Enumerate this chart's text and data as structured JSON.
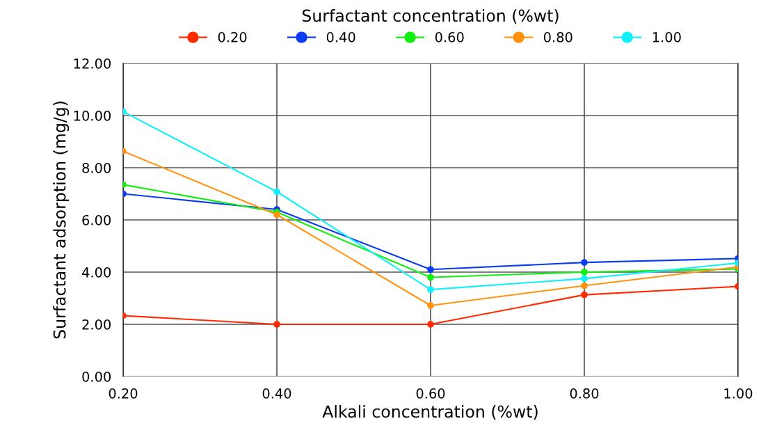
{
  "chart_data": {
    "type": "line",
    "xlabel": "Alkali concentration (%wt)",
    "ylabel": "Surfactant adsorption (mg/g)",
    "legend_title": "Surfactant concentration (%wt)",
    "x": [
      0.2,
      0.4,
      0.6,
      0.8,
      1.0
    ],
    "series": [
      {
        "name": "0.20",
        "color": "#ff2a00",
        "values": [
          2.33,
          2.0,
          2.0,
          3.13,
          3.45
        ]
      },
      {
        "name": "0.40",
        "color": "#0a3cf0",
        "values": [
          7.0,
          6.4,
          4.1,
          4.37,
          4.52
        ]
      },
      {
        "name": "0.60",
        "color": "#11ee11",
        "values": [
          7.35,
          6.3,
          3.8,
          4.0,
          4.12
        ]
      },
      {
        "name": "0.80",
        "color": "#ff9310",
        "values": [
          8.63,
          6.2,
          2.72,
          3.48,
          4.2
        ]
      },
      {
        "name": "1.00",
        "color": "#11f0f8",
        "values": [
          10.15,
          7.08,
          3.33,
          3.75,
          4.35
        ]
      }
    ],
    "xlim": [
      0.2,
      1.0
    ],
    "ylim": [
      0,
      12
    ],
    "xticks": [
      {
        "value": 0.2,
        "label": "0.20"
      },
      {
        "value": 0.4,
        "label": "0.40"
      },
      {
        "value": 0.6,
        "label": "0.60"
      },
      {
        "value": 0.8,
        "label": "0.80"
      },
      {
        "value": 1.0,
        "label": "1.00"
      }
    ],
    "yticks": [
      {
        "value": 0,
        "label": "0.00"
      },
      {
        "value": 2,
        "label": "2.00"
      },
      {
        "value": 4,
        "label": "4.00"
      },
      {
        "value": 6,
        "label": "6.00"
      },
      {
        "value": 8,
        "label": "8.00"
      },
      {
        "value": 10,
        "label": "10.00"
      },
      {
        "value": 12,
        "label": "12.00"
      }
    ],
    "grid": true,
    "legend": "top",
    "marker": "circle",
    "line_style": "solid"
  }
}
